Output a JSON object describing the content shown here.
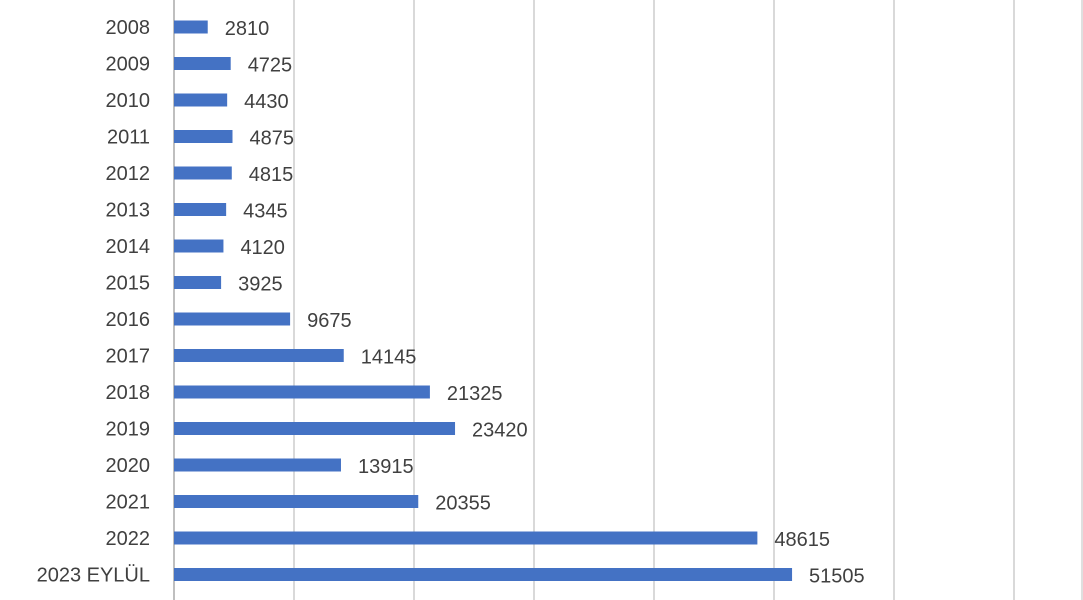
{
  "chart_data": {
    "type": "bar",
    "orientation": "horizontal",
    "categories": [
      "2008",
      "2009",
      "2010",
      "2011",
      "2012",
      "2013",
      "2014",
      "2015",
      "2016",
      "2017",
      "2018",
      "2019",
      "2020",
      "2021",
      "2022",
      "2023 EYLÜL"
    ],
    "values": [
      2810,
      4725,
      4430,
      4875,
      4815,
      4345,
      4120,
      3925,
      9675,
      14145,
      21325,
      23420,
      13915,
      20355,
      48615,
      51505
    ],
    "xlim": [
      0,
      70000
    ],
    "grid": true,
    "bar_color": "#4472c4",
    "data_labels": true
  }
}
